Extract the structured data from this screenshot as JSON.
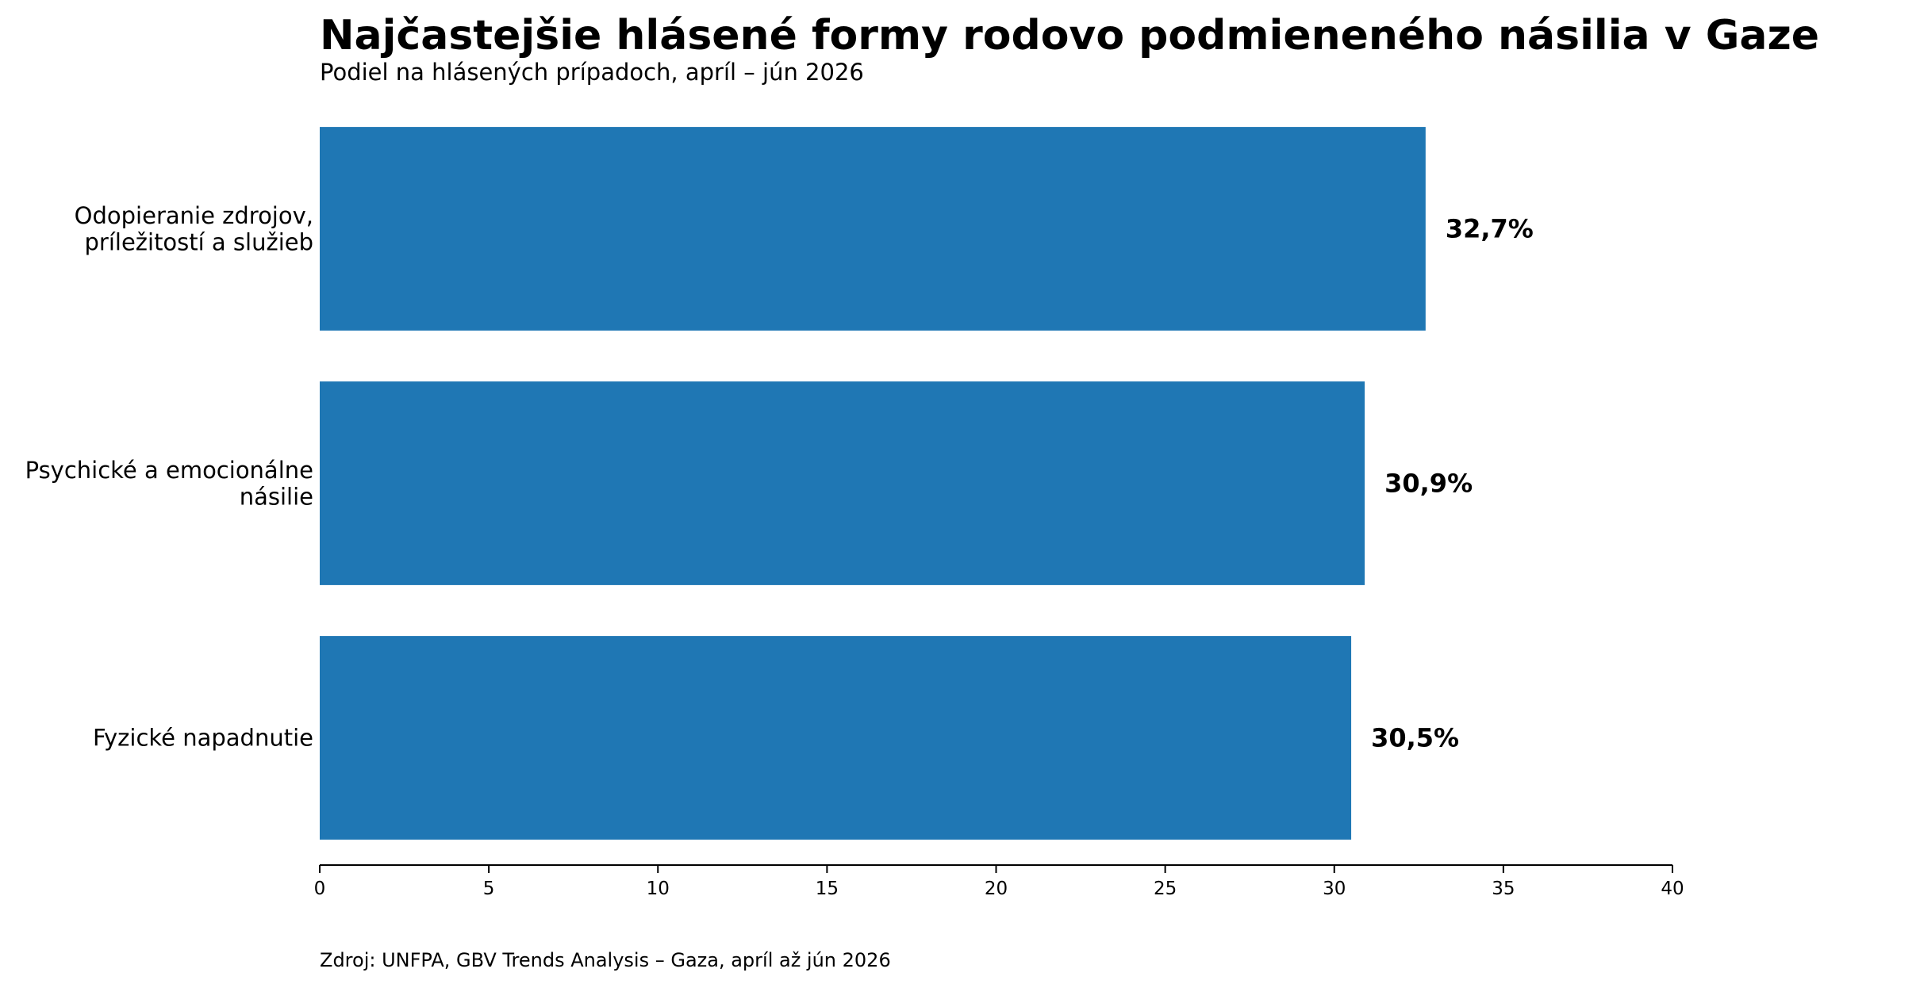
{
  "chart_data": {
    "type": "bar",
    "orientation": "horizontal",
    "title": "Najčastejšie hlásené formy rodovo podmieneného násilia v Gaze",
    "subtitle": "Podiel na hlásených prípadoch, apríl – jún 2026",
    "source": "Zdroj: UNFPA, GBV Trends Analysis – Gaza, apríl až jún 2026",
    "categories": [
      "Odopieranie zdrojov,\npríležitostí a služieb",
      "Psychické a emocionálne\nnásilie",
      "Fyzické napadnutie"
    ],
    "values": [
      32.7,
      30.9,
      30.5
    ],
    "value_labels": [
      "32,7%",
      "30,9%",
      "30,5%"
    ],
    "color": "#1f77b4",
    "xlim": [
      0,
      40
    ],
    "xticks": [
      0,
      5,
      10,
      15,
      20,
      25,
      30,
      35,
      40
    ],
    "grid": false
  }
}
